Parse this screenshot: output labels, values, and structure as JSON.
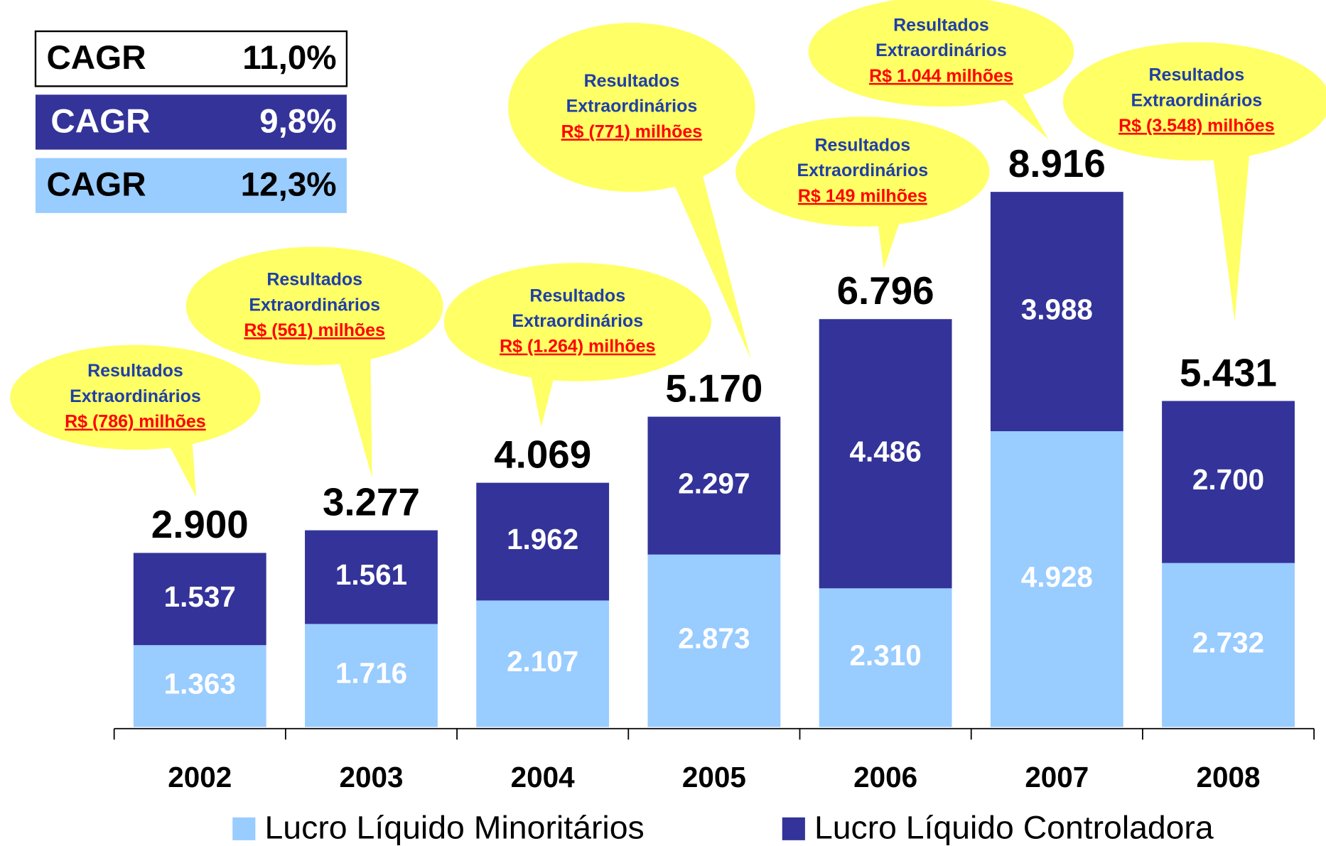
{
  "chart_data": {
    "type": "stacked_bar",
    "categories": [
      "2002",
      "2003",
      "2004",
      "2005",
      "2006",
      "2007",
      "2008"
    ],
    "series": [
      {
        "name": "Lucro Líquido Minoritários",
        "color": "#99ccff",
        "label_color": "#ffffff",
        "values": [
          1363,
          1716,
          2107,
          2873,
          2310,
          4928,
          2732
        ],
        "value_labels": [
          "1.363",
          "1.716",
          "2.107",
          "2.873",
          "2.310",
          "4.928",
          "2.732"
        ]
      },
      {
        "name": "Lucro Líquido Controladora",
        "color": "#333399",
        "label_color": "#ffffff",
        "values": [
          1537,
          1561,
          1962,
          2297,
          4486,
          3988,
          2700
        ],
        "value_labels": [
          "1.537",
          "1.561",
          "1.962",
          "2.297",
          "4.486",
          "3.988",
          "2.700"
        ]
      }
    ],
    "totals": {
      "values": [
        2900,
        3277,
        4069,
        5170,
        6796,
        8916,
        5431
      ],
      "value_labels": [
        "2.900",
        "3.277",
        "4.069",
        "5.170",
        "6.796",
        "8.916",
        "5.431"
      ]
    },
    "annotations": [
      {
        "lines": [
          "Resultados",
          "Extraordinários"
        ],
        "amount": "R$ (786) milhões"
      },
      {
        "lines": [
          "Resultados",
          "Extraordinários"
        ],
        "amount": "R$ (561) milhões"
      },
      {
        "lines": [
          "Resultados",
          "Extraordinários"
        ],
        "amount": "R$ (1.264) milhões"
      },
      {
        "lines": [
          "Resultados",
          "Extraordinários"
        ],
        "amount": "R$ (771) milhões"
      },
      {
        "lines": [
          "Resultados",
          "Extraordinários"
        ],
        "amount": "R$ 149 milhões"
      },
      {
        "lines": [
          "Resultados",
          "Extraordinários"
        ],
        "amount": "R$ 1.044 milhões"
      },
      {
        "lines": [
          "Resultados",
          "Extraordinários"
        ],
        "amount": "R$ (3.548) milhões"
      }
    ],
    "cagr": [
      {
        "label": "CAGR",
        "value": "11,0%",
        "fill": "#ffffff",
        "text_color": "#000000"
      },
      {
        "label": "CAGR",
        "value": "9,8%",
        "fill": "#333399",
        "text_color": "#ffffff"
      },
      {
        "label": "CAGR",
        "value": "12,3%",
        "fill": "#99ccff",
        "text_color": "#000000"
      }
    ],
    "callout_color": "#ffff66"
  }
}
